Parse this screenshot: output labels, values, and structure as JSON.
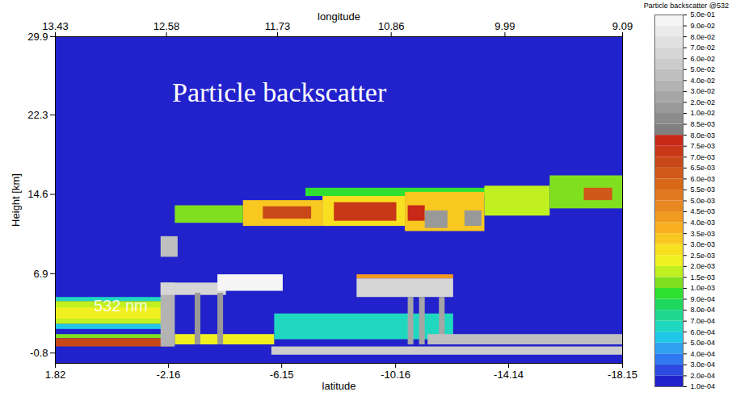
{
  "chart_data": {
    "type": "heatmap",
    "title": "Particle backscatter",
    "annotations": [
      "532 nm"
    ],
    "x_label": "latitude",
    "x2_label": "longitude",
    "y_label": "Height [km]",
    "xlim": [
      1.82,
      -18.15
    ],
    "xticks": [
      1.82,
      -2.16,
      -6.15,
      -10.16,
      -14.14,
      -18.15
    ],
    "x2lim": [
      13.43,
      9.09
    ],
    "x2ticks": [
      13.43,
      12.58,
      11.73,
      10.86,
      9.99,
      9.09
    ],
    "ylim": [
      -1.8,
      29.9
    ],
    "yticks": [
      -0.8,
      6.9,
      14.6,
      22.3,
      29.9
    ],
    "cells": [
      {
        "x1": 1.82,
        "x2": -18.15,
        "y1": -1.8,
        "y2": 29.9,
        "value": 0.00015
      },
      {
        "x1": 1.82,
        "x2": -2.36,
        "y1": 1.5,
        "y2": 2.0,
        "value": 0.0005
      },
      {
        "x1": 1.82,
        "x2": -2.36,
        "y1": 4.2,
        "y2": 4.6,
        "value": 0.0006
      },
      {
        "x1": 1.82,
        "x2": -2.36,
        "y1": 2.0,
        "y2": 4.2,
        "value": 0.0015
      },
      {
        "x1": 1.82,
        "x2": -2.3,
        "y1": 2.5,
        "y2": 3.6,
        "value": 0.0022
      },
      {
        "x1": 1.82,
        "x2": -2.3,
        "y1": 0.6,
        "y2": 1.0,
        "value": 0.0012
      },
      {
        "x1": 1.82,
        "x2": -2.3,
        "y1": -0.2,
        "y2": 0.6,
        "value": 0.0068
      },
      {
        "x1": -7.0,
        "x2": -15.0,
        "y1": 14.4,
        "y2": 15.2,
        "value": 0.0009
      },
      {
        "x1": -2.4,
        "x2": -4.8,
        "y1": 11.8,
        "y2": 13.5,
        "value": 0.0012
      },
      {
        "x1": -4.8,
        "x2": -7.6,
        "y1": 11.5,
        "y2": 14.0,
        "value": 0.003
      },
      {
        "x1": -5.5,
        "x2": -7.2,
        "y1": 12.2,
        "y2": 13.4,
        "value": 0.0065
      },
      {
        "x1": -7.6,
        "x2": -10.5,
        "y1": 11.5,
        "y2": 14.4,
        "value": 0.0025
      },
      {
        "x1": -8.0,
        "x2": -10.2,
        "y1": 12.0,
        "y2": 13.8,
        "value": 0.007
      },
      {
        "x1": -10.5,
        "x2": -13.3,
        "y1": 11.0,
        "y2": 14.8,
        "value": 0.003
      },
      {
        "x1": -10.6,
        "x2": -11.2,
        "y1": 12.0,
        "y2": 13.5,
        "value": 0.0075
      },
      {
        "x1": -11.2,
        "x2": -12.0,
        "y1": 11.3,
        "y2": 13.0,
        "value": 0.015
      },
      {
        "x1": -12.6,
        "x2": -13.2,
        "y1": 11.5,
        "y2": 13.0,
        "value": 0.012
      },
      {
        "x1": -13.3,
        "x2": -15.6,
        "y1": 12.5,
        "y2": 15.4,
        "value": 0.0015
      },
      {
        "x1": -15.6,
        "x2": -18.15,
        "y1": 13.2,
        "y2": 16.4,
        "value": 0.0012
      },
      {
        "x1": -16.8,
        "x2": -17.8,
        "y1": 14.0,
        "y2": 15.2,
        "value": 0.006
      },
      {
        "x1": -2.4,
        "x2": -5.9,
        "y1": 0.0,
        "y2": 1.0,
        "value": 0.002
      },
      {
        "x1": -5.9,
        "x2": -12.2,
        "y1": 0.5,
        "y2": 3.0,
        "value": 0.0006
      },
      {
        "x1": -1.9,
        "x2": -2.5,
        "y1": 8.5,
        "y2": 10.5,
        "value": 0.04
      },
      {
        "x1": -1.9,
        "x2": -2.4,
        "y1": -0.2,
        "y2": 6.0,
        "value": 0.03
      },
      {
        "x1": -1.9,
        "x2": -4.2,
        "y1": 4.8,
        "y2": 6.0,
        "value": 0.06
      },
      {
        "x1": -3.9,
        "x2": -6.2,
        "y1": 5.2,
        "y2": 6.8,
        "value": 0.095
      },
      {
        "x1": -3.1,
        "x2": -3.3,
        "y1": 0.0,
        "y2": 5.0,
        "value": 0.015
      },
      {
        "x1": -3.9,
        "x2": -4.1,
        "y1": 0.0,
        "y2": 5.0,
        "value": 0.015
      },
      {
        "x1": -8.8,
        "x2": -12.2,
        "y1": 6.4,
        "y2": 6.8,
        "value": 0.004
      },
      {
        "x1": -8.8,
        "x2": -12.2,
        "y1": 4.6,
        "y2": 6.4,
        "value": 0.06
      },
      {
        "x1": -10.6,
        "x2": -10.8,
        "y1": 0.0,
        "y2": 4.6,
        "value": 0.02
      },
      {
        "x1": -11.0,
        "x2": -11.2,
        "y1": 0.0,
        "y2": 4.6,
        "value": 0.02
      },
      {
        "x1": -11.7,
        "x2": -11.9,
        "y1": 0.0,
        "y2": 4.6,
        "value": 0.02
      },
      {
        "x1": -11.3,
        "x2": -18.15,
        "y1": 0.0,
        "y2": 1.0,
        "value": 0.04
      },
      {
        "x1": -5.8,
        "x2": -18.15,
        "y1": -1.0,
        "y2": -0.2,
        "value": 0.05
      }
    ],
    "colorbar": {
      "title": "Particle backscatter @532",
      "ticks": [
        {
          "value": 0.0001,
          "label": "1.0e-04"
        },
        {
          "value": 0.0002,
          "label": "2.0e-04"
        },
        {
          "value": 0.0003,
          "label": "3.0e-04"
        },
        {
          "value": 0.0004,
          "label": "4.0e-04"
        },
        {
          "value": 0.0005,
          "label": "5.0e-04"
        },
        {
          "value": 0.0006,
          "label": "6.0e-04"
        },
        {
          "value": 0.0007,
          "label": "7.0e-04"
        },
        {
          "value": 0.0008,
          "label": "8.0e-04"
        },
        {
          "value": 0.0009,
          "label": "9.0e-04"
        },
        {
          "value": 0.001,
          "label": "1.0e-03"
        },
        {
          "value": 0.0015,
          "label": "1.5e-03"
        },
        {
          "value": 0.002,
          "label": "2.0e-03"
        },
        {
          "value": 0.0025,
          "label": "2.5e-03"
        },
        {
          "value": 0.003,
          "label": "3.0e-03"
        },
        {
          "value": 0.0035,
          "label": "3.5e-03"
        },
        {
          "value": 0.004,
          "label": "4.0e-03"
        },
        {
          "value": 0.0045,
          "label": "4.5e-03"
        },
        {
          "value": 0.005,
          "label": "5.0e-03"
        },
        {
          "value": 0.0055,
          "label": "5.5e-03"
        },
        {
          "value": 0.006,
          "label": "6.0e-03"
        },
        {
          "value": 0.0065,
          "label": "6.5e-03"
        },
        {
          "value": 0.007,
          "label": "7.0e-03"
        },
        {
          "value": 0.0075,
          "label": "7.5e-03"
        },
        {
          "value": 0.008,
          "label": "8.0e-03"
        },
        {
          "value": 0.0085,
          "label": "8.5e-03"
        },
        {
          "value": 0.01,
          "label": "1.0e-02"
        },
        {
          "value": 0.02,
          "label": "2.0e-02"
        },
        {
          "value": 0.03,
          "label": "3.0e-02"
        },
        {
          "value": 0.04,
          "label": "4.0e-02"
        },
        {
          "value": 0.05,
          "label": "5.0e-02"
        },
        {
          "value": 0.06,
          "label": "6.0e-02"
        },
        {
          "value": 0.07,
          "label": "7.0e-02"
        },
        {
          "value": 0.08,
          "label": "8.0e-02"
        },
        {
          "value": 0.09,
          "label": "9.0e-02"
        },
        {
          "value": 0.5,
          "label": "5.0e-01"
        }
      ],
      "colors": [
        "#2222cc",
        "#2a4ae0",
        "#2f78f0",
        "#30a0f0",
        "#20c8e8",
        "#20d8c0",
        "#20d890",
        "#20d860",
        "#30e030",
        "#80e020",
        "#c0f020",
        "#f0f020",
        "#f8e020",
        "#f8c820",
        "#f8b020",
        "#f09a20",
        "#e88820",
        "#e07820",
        "#d86818",
        "#d05818",
        "#c84818",
        "#c83818",
        "#c82818",
        "#808080",
        "#8c8c8c",
        "#999999",
        "#a6a6a6",
        "#b3b3b3",
        "#bfbfbf",
        "#cccccc",
        "#d6d6d6",
        "#e0e0e0",
        "#ebebeb",
        "#f5f5f5"
      ]
    }
  }
}
